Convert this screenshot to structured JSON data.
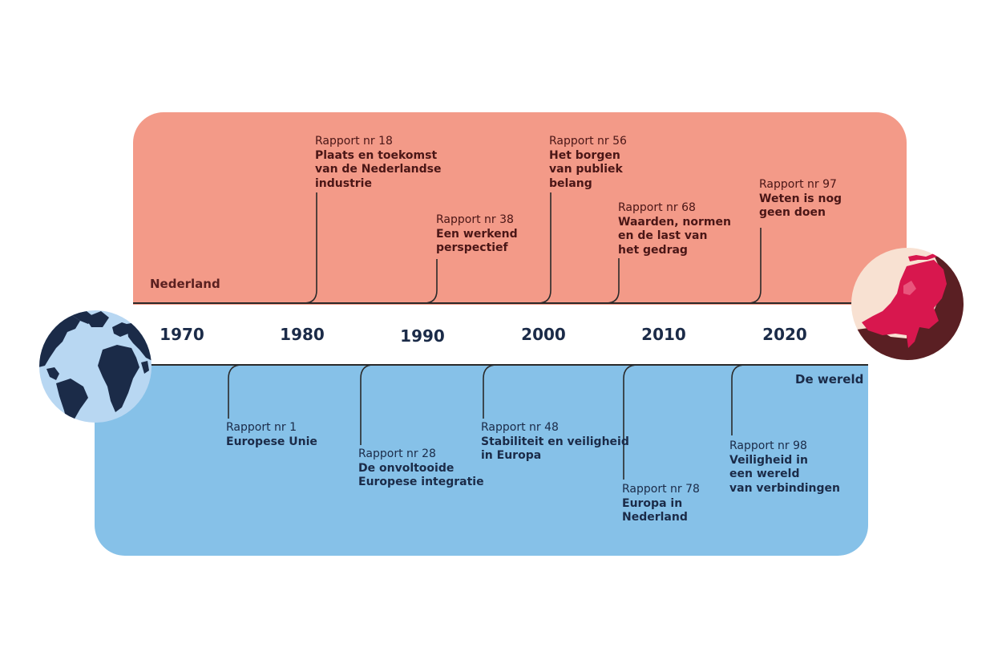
{
  "colors": {
    "nederland_panel": "#f39a88",
    "wereld_panel": "#86c1e8",
    "line": "#2a2a2a",
    "nl_map": "#d8174e",
    "nl_globe_dark": "#5a1f23",
    "nl_globe_light": "#f8e1d2",
    "world_ocean": "#b8d7f2",
    "world_land": "#1b2b48"
  },
  "regions": {
    "nederland": "Nederland",
    "wereld": "De wereld"
  },
  "years": [
    "1970",
    "1980",
    "1990",
    "2000",
    "2010",
    "2020"
  ],
  "reports_nederland": [
    {
      "number": "Rapport nr 18",
      "title": "Plaats en toekomst\nvan de Nederlandse\nindustrie"
    },
    {
      "number": "Rapport nr 38",
      "title": "Een werkend\nperspectief"
    },
    {
      "number": "Rapport nr 56",
      "title": "Het borgen\nvan publiek\nbelang"
    },
    {
      "number": "Rapport nr 68",
      "title": "Waarden, normen\nen de last van\nhet gedrag"
    },
    {
      "number": "Rapport nr 97",
      "title": "Weten is nog\ngeen doen"
    }
  ],
  "reports_wereld": [
    {
      "number": "Rapport nr 1",
      "title": "Europese Unie"
    },
    {
      "number": "Rapport nr 28",
      "title": "De onvoltooide\nEuropese integratie"
    },
    {
      "number": "Rapport nr 48",
      "title": "Stabiliteit en veiligheid\nin Europa"
    },
    {
      "number": "Rapport nr 78",
      "title": "Europa in\nNederland"
    },
    {
      "number": "Rapport nr 98",
      "title": "Veiligheid in\neen wereld\nvan verbindingen"
    }
  ],
  "icons": {
    "world_globe": "world-globe-icon",
    "netherlands_globe": "netherlands-map-icon"
  }
}
